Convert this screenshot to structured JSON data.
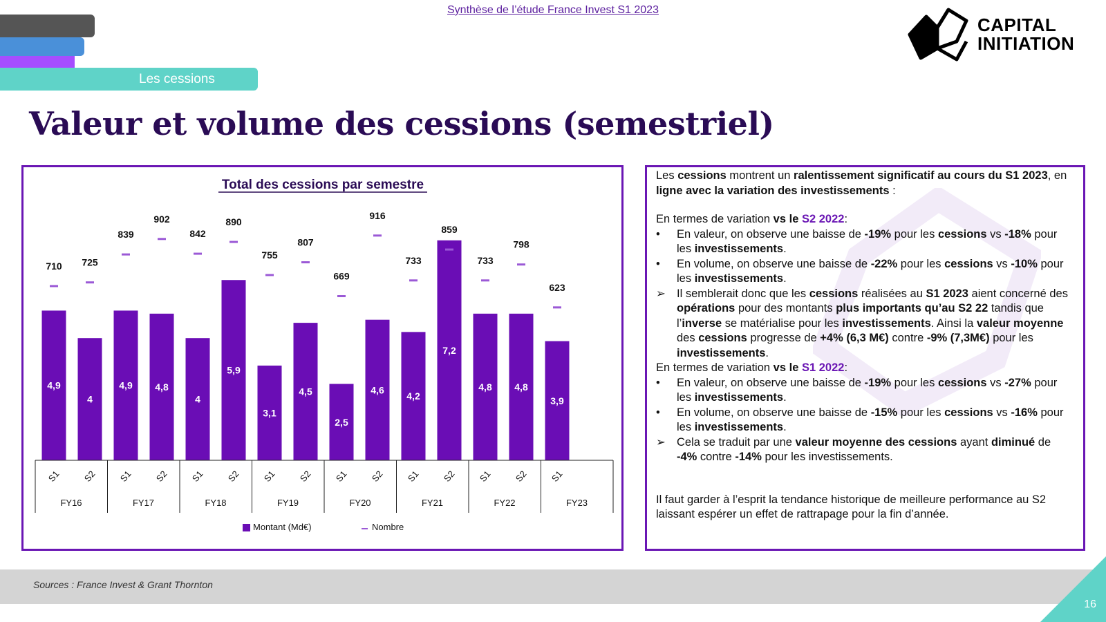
{
  "header": {
    "top_link": "Synthèse de l’étude France Invest S1 2023",
    "section": "Les cessions",
    "logo_text": [
      "CAPITAL",
      "INITIATION"
    ],
    "title": "Valeur et volume des cessions (semestriel)"
  },
  "colors": {
    "bar": "#6a0db5",
    "marker": "#9b59d6",
    "accent": "#6a16b4",
    "teal": "#5fd3c8",
    "tabs": [
      "#555555",
      "#4a90d9",
      "#a64dff"
    ]
  },
  "chart_data": {
    "type": "bar+marker",
    "title": "Total des cessions par semestre",
    "categories": [
      "S1",
      "S2",
      "S1",
      "S2",
      "S1",
      "S2",
      "S1",
      "S2",
      "S1",
      "S2",
      "S1",
      "S2",
      "S1",
      "S2",
      "S1"
    ],
    "groups": [
      "FY16",
      "FY17",
      "FY18",
      "FY19",
      "FY20",
      "FY21",
      "FY22",
      "FY23"
    ],
    "series": [
      {
        "name": "Montant (Md€)",
        "type": "bar",
        "values": [
          4.9,
          4,
          4.9,
          4.8,
          4,
          5.9,
          3.1,
          4.5,
          2.5,
          4.6,
          4.2,
          7.2,
          4.8,
          4.8,
          3.9
        ],
        "labels": [
          "4,9",
          "4",
          "4,9",
          "4,8",
          "4",
          "5,9",
          "3,1",
          "4,5",
          "2,5",
          "4,6",
          "4,2",
          "7,2",
          "4,8",
          "4,8",
          "3,9"
        ]
      },
      {
        "name": "Nombre",
        "type": "marker",
        "axis": "secondary",
        "values": [
          710,
          725,
          839,
          902,
          842,
          890,
          755,
          807,
          669,
          916,
          733,
          859,
          733,
          798,
          623
        ]
      }
    ],
    "legend": "bottom",
    "grid": false
  },
  "text": {
    "paragraphs": [
      {
        "type": "p",
        "segs": [
          [
            "Les ",
            0
          ],
          [
            "cessions",
            1
          ],
          [
            " montrent un ",
            0
          ],
          [
            "ralentissement significatif au cours du S1 2023",
            1
          ],
          [
            ", en ",
            0
          ],
          [
            "ligne avec la variation des investissements",
            1
          ],
          [
            " :",
            0
          ]
        ]
      },
      {
        "type": "gap"
      },
      {
        "type": "p",
        "segs": [
          [
            "En termes de variation ",
            0
          ],
          [
            "vs le ",
            1
          ],
          [
            "S2 2022",
            2
          ],
          [
            ":",
            0
          ]
        ]
      },
      {
        "type": "li",
        "mark": "•",
        "segs": [
          [
            "En valeur, on observe une baisse de ",
            0
          ],
          [
            "-19%",
            1
          ],
          [
            " pour les ",
            0
          ],
          [
            "cessions",
            1
          ],
          [
            " vs ",
            0
          ],
          [
            "-18%",
            1
          ],
          [
            " pour les ",
            0
          ],
          [
            "investissements",
            1
          ],
          [
            ".",
            0
          ]
        ]
      },
      {
        "type": "li",
        "mark": "•",
        "segs": [
          [
            "En volume, on observe une baisse de ",
            0
          ],
          [
            "-22%",
            1
          ],
          [
            " pour les ",
            0
          ],
          [
            "cessions",
            1
          ],
          [
            " vs ",
            0
          ],
          [
            "-10%",
            1
          ],
          [
            " pour les ",
            0
          ],
          [
            "investissements",
            1
          ],
          [
            ".",
            0
          ]
        ]
      },
      {
        "type": "li",
        "mark": "➢",
        "segs": [
          [
            "Il semblerait donc que les ",
            0
          ],
          [
            "cessions",
            1
          ],
          [
            " réalisées au ",
            0
          ],
          [
            "S1 2023",
            1
          ],
          [
            " aient concerné des ",
            0
          ],
          [
            "opérations",
            1
          ],
          [
            " pour des montants ",
            0
          ],
          [
            "plus importants qu’au S2 22",
            1
          ],
          [
            " tandis que l’",
            0
          ],
          [
            "inverse",
            1
          ],
          [
            " se matérialise pour les ",
            0
          ],
          [
            "investissements",
            1
          ],
          [
            ". Ainsi la ",
            0
          ],
          [
            "valeur moyenne",
            1
          ],
          [
            " des ",
            0
          ],
          [
            "cessions",
            1
          ],
          [
            " progresse de ",
            0
          ],
          [
            "+4% (6,3 M€)",
            1
          ],
          [
            " contre ",
            0
          ],
          [
            "-9% (7,3M€)",
            1
          ],
          [
            " pour les ",
            0
          ],
          [
            "investissements",
            1
          ],
          [
            ".",
            0
          ]
        ]
      },
      {
        "type": "p",
        "segs": [
          [
            "En termes de variation ",
            0
          ],
          [
            "vs le ",
            1
          ],
          [
            "S1 2022",
            2
          ],
          [
            ":",
            0
          ]
        ]
      },
      {
        "type": "li",
        "mark": "•",
        "segs": [
          [
            "En valeur, on observe une baisse de ",
            0
          ],
          [
            "-19%",
            1
          ],
          [
            " pour les ",
            0
          ],
          [
            "cessions",
            1
          ],
          [
            " vs ",
            0
          ],
          [
            "-27%",
            1
          ],
          [
            " pour les ",
            0
          ],
          [
            "investissements",
            1
          ],
          [
            ".",
            0
          ]
        ]
      },
      {
        "type": "li",
        "mark": "•",
        "segs": [
          [
            "En volume, on observe une baisse de ",
            0
          ],
          [
            "-15%",
            1
          ],
          [
            " pour les ",
            0
          ],
          [
            "cessions",
            1
          ],
          [
            " vs ",
            0
          ],
          [
            "-16%",
            1
          ],
          [
            " pour les ",
            0
          ],
          [
            "investissements",
            1
          ],
          [
            ".",
            0
          ]
        ]
      },
      {
        "type": "li",
        "mark": "➢",
        "segs": [
          [
            "Cela se traduit par une ",
            0
          ],
          [
            "valeur moyenne des cessions",
            1
          ],
          [
            " ayant ",
            0
          ],
          [
            "diminué",
            1
          ],
          [
            " de ",
            0
          ],
          [
            "-4%",
            1
          ],
          [
            " contre ",
            0
          ],
          [
            "-14%",
            1
          ],
          [
            " pour les investissements.",
            0
          ]
        ]
      },
      {
        "type": "gap"
      },
      {
        "type": "gap"
      },
      {
        "type": "p",
        "segs": [
          [
            "Il faut garder à l’esprit la tendance historique de meilleure performance au S2 laissant espérer un effet de rattrapage pour la fin d’année.",
            0
          ]
        ]
      }
    ]
  },
  "footer": {
    "sources": "Sources : France Invest & Grant Thornton",
    "page": "16"
  }
}
